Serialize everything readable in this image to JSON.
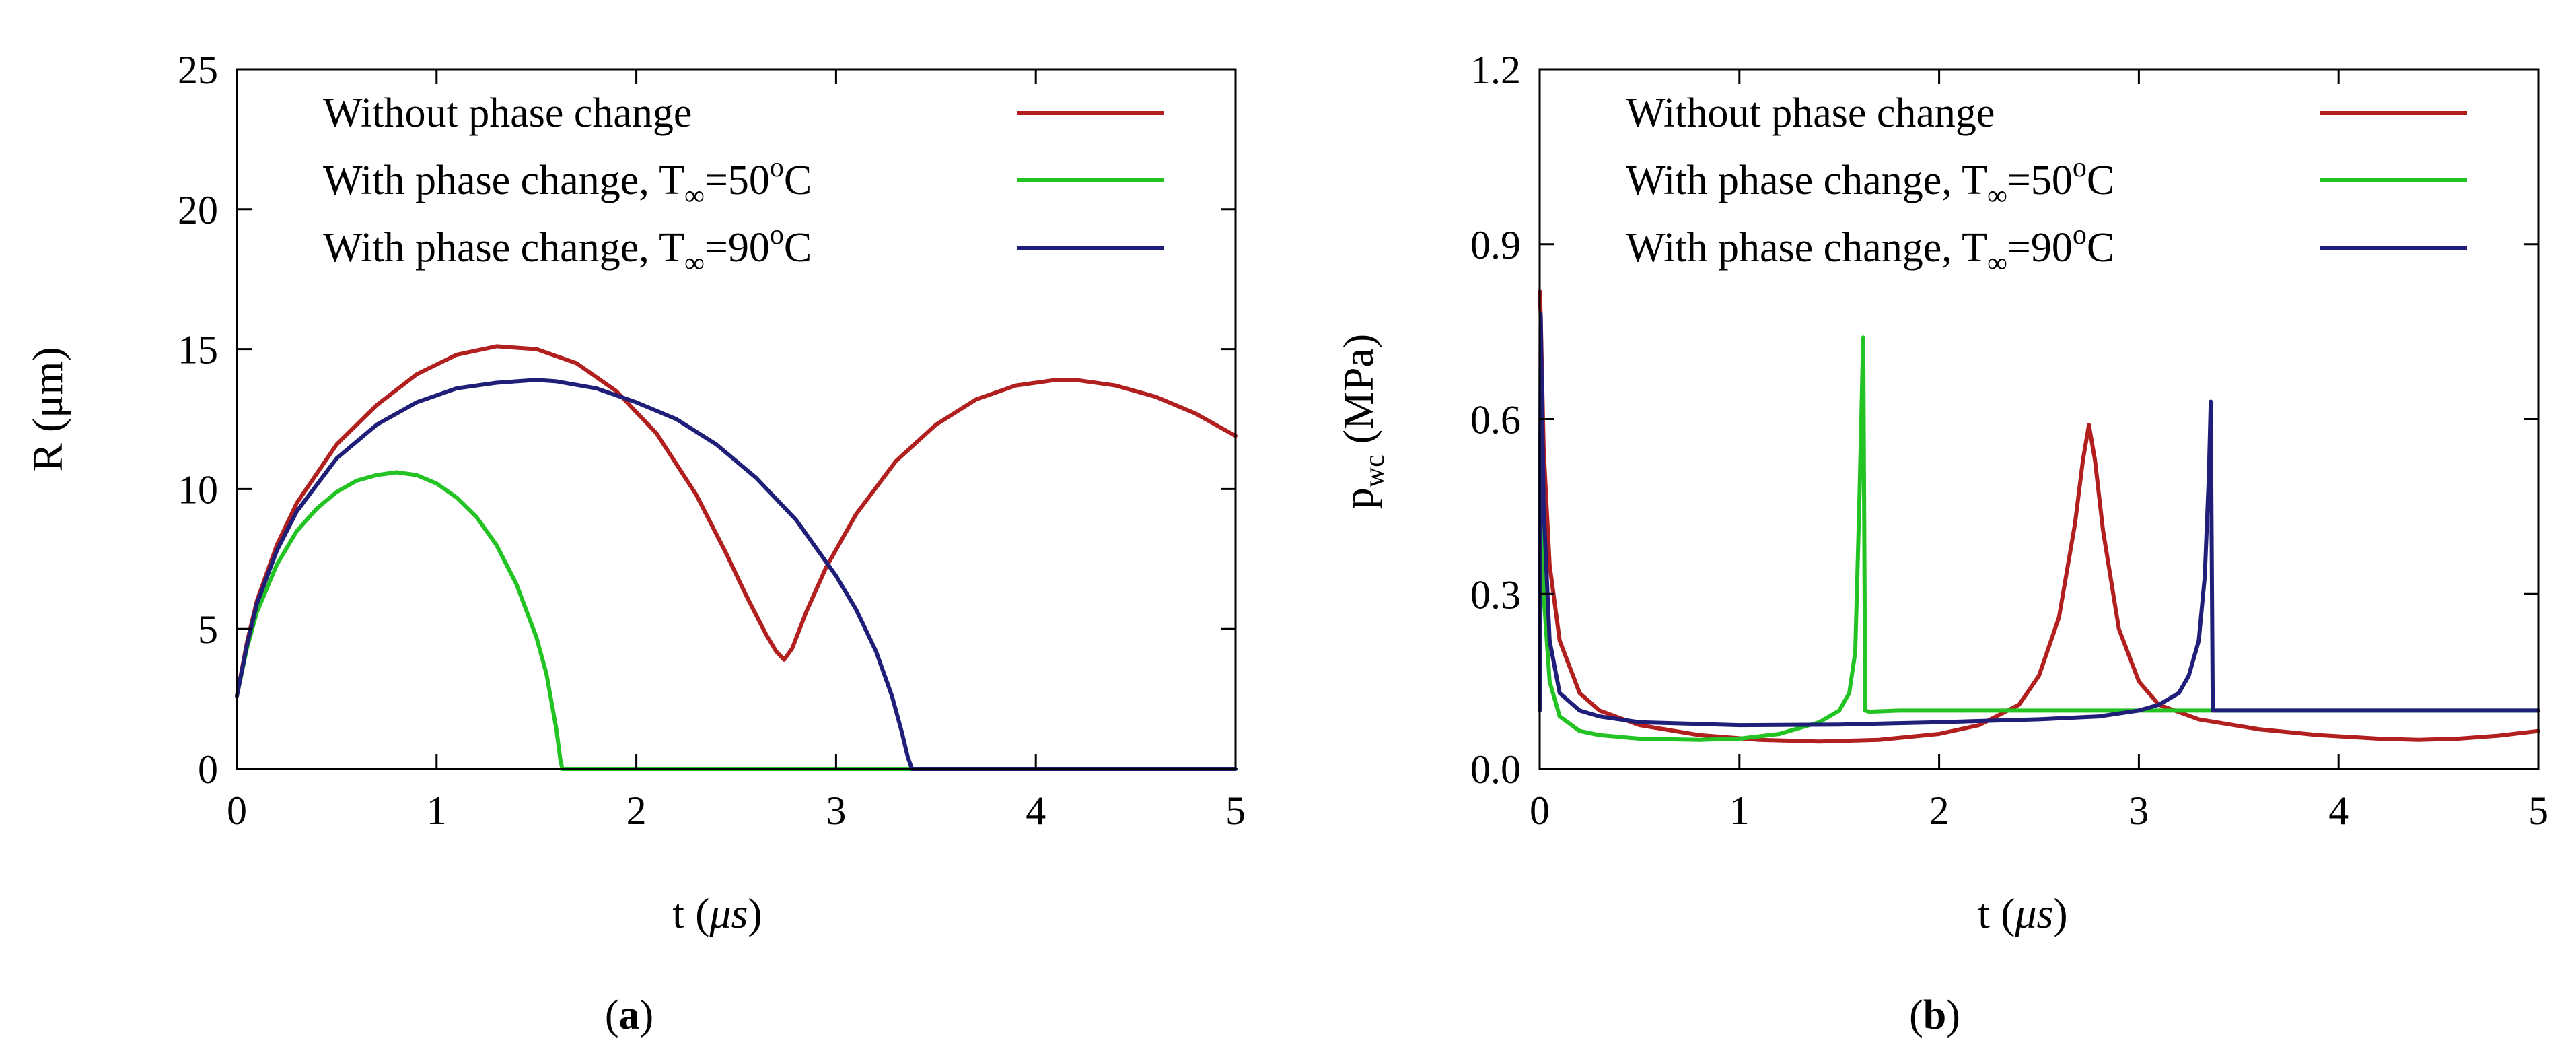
{
  "chart_data": [
    {
      "type": "line",
      "panel": "a",
      "panel_label": "a",
      "xlabel_prefix": "t (",
      "xlabel_unit": "μs",
      "xlabel_suffix": ")",
      "ylabel": "R (μm)",
      "xlim": [
        0,
        5
      ],
      "ylim": [
        0,
        25
      ],
      "xticks": [
        0,
        1,
        2,
        3,
        4,
        5
      ],
      "yticks": [
        0,
        5,
        10,
        15,
        20,
        25
      ],
      "xtick_labels": [
        "0",
        "1",
        "2",
        "3",
        "4",
        "5"
      ],
      "ytick_labels": [
        "0",
        "5",
        "10",
        "15",
        "20",
        "25"
      ],
      "legend": [
        {
          "prefix": "Without phase change",
          "sub": "",
          "mid": "",
          "sup": "",
          "suffix": "",
          "color": "#b11f1f"
        },
        {
          "prefix": "With phase change, T",
          "sub": "∞",
          "mid": "=50",
          "sup": "o",
          "suffix": "C",
          "color": "#22c322"
        },
        {
          "prefix": "With phase change, T",
          "sub": "∞",
          "mid": "=90",
          "sup": "o",
          "suffix": "C",
          "color": "#1f1f7a"
        }
      ],
      "series": [
        {
          "name": "Without phase change",
          "color": "#b11f1f",
          "x": [
            0,
            0.05,
            0.1,
            0.2,
            0.3,
            0.5,
            0.7,
            0.9,
            1.1,
            1.3,
            1.5,
            1.7,
            1.9,
            2.1,
            2.3,
            2.45,
            2.55,
            2.65,
            2.7,
            2.74,
            2.78,
            2.85,
            2.95,
            3.1,
            3.3,
            3.5,
            3.7,
            3.9,
            4.1,
            4.2,
            4.4,
            4.6,
            4.8,
            5.0
          ],
          "y": [
            2.6,
            4.5,
            6.0,
            8.0,
            9.5,
            11.6,
            13.0,
            14.1,
            14.8,
            15.1,
            15.0,
            14.5,
            13.5,
            12.0,
            9.8,
            7.7,
            6.2,
            4.8,
            4.2,
            3.9,
            4.3,
            5.6,
            7.2,
            9.1,
            11.0,
            12.3,
            13.2,
            13.7,
            13.9,
            13.9,
            13.7,
            13.3,
            12.7,
            11.9
          ]
        },
        {
          "name": "With phase change, T∞=50oC",
          "color": "#22c322",
          "x": [
            0,
            0.05,
            0.1,
            0.2,
            0.3,
            0.4,
            0.5,
            0.6,
            0.7,
            0.8,
            0.9,
            1.0,
            1.1,
            1.2,
            1.3,
            1.4,
            1.5,
            1.55,
            1.6,
            1.62,
            1.63,
            2.0,
            3.0,
            4.0,
            5.0
          ],
          "y": [
            2.6,
            4.3,
            5.6,
            7.3,
            8.5,
            9.3,
            9.9,
            10.3,
            10.5,
            10.6,
            10.5,
            10.2,
            9.7,
            9.0,
            8.0,
            6.6,
            4.7,
            3.4,
            1.4,
            0.3,
            0,
            0,
            0,
            0,
            0
          ]
        },
        {
          "name": "With phase change, T∞=90oC",
          "color": "#1f1f7a",
          "x": [
            0,
            0.05,
            0.1,
            0.2,
            0.3,
            0.5,
            0.7,
            0.9,
            1.1,
            1.3,
            1.5,
            1.6,
            1.8,
            2.0,
            2.2,
            2.4,
            2.6,
            2.8,
            3.0,
            3.1,
            3.2,
            3.28,
            3.33,
            3.36,
            3.38,
            4.0,
            5.0
          ],
          "y": [
            2.6,
            4.4,
            5.9,
            7.8,
            9.2,
            11.1,
            12.3,
            13.1,
            13.6,
            13.8,
            13.9,
            13.85,
            13.6,
            13.1,
            12.5,
            11.6,
            10.4,
            8.9,
            6.9,
            5.7,
            4.2,
            2.6,
            1.3,
            0.4,
            0,
            0,
            0
          ]
        }
      ]
    },
    {
      "type": "line",
      "panel": "b",
      "panel_label": "b",
      "xlabel_prefix": "t (",
      "xlabel_unit": "μs",
      "xlabel_suffix": ")",
      "ylabel_base": "p",
      "ylabel_sub": "wc",
      "ylabel_rest": " (MPa)",
      "xlim": [
        0,
        5
      ],
      "ylim": [
        0,
        1.2
      ],
      "xticks": [
        0,
        1,
        2,
        3,
        4,
        5
      ],
      "yticks": [
        0,
        0.3,
        0.6,
        0.9,
        1.2
      ],
      "xtick_labels": [
        "0",
        "1",
        "2",
        "3",
        "4",
        "5"
      ],
      "ytick_labels": [
        "0.0",
        "0.3",
        "0.6",
        "0.9",
        "1.2"
      ],
      "legend": [
        {
          "prefix": "Without phase change",
          "sub": "",
          "mid": "",
          "sup": "",
          "suffix": "",
          "color": "#b11f1f"
        },
        {
          "prefix": "With phase change, T",
          "sub": "∞",
          "mid": "=50",
          "sup": "o",
          "suffix": "C",
          "color": "#22c322"
        },
        {
          "prefix": "With phase change, T",
          "sub": "∞",
          "mid": "=90",
          "sup": "o",
          "suffix": "C",
          "color": "#1f1f7a"
        }
      ],
      "series": [
        {
          "name": "Without phase change",
          "color": "#b11f1f",
          "x": [
            0,
            0.005,
            0.02,
            0.05,
            0.1,
            0.2,
            0.3,
            0.5,
            0.8,
            1.1,
            1.4,
            1.7,
            2.0,
            2.2,
            2.4,
            2.5,
            2.6,
            2.68,
            2.72,
            2.75,
            2.78,
            2.82,
            2.9,
            3.0,
            3.1,
            3.3,
            3.6,
            3.9,
            4.2,
            4.4,
            4.6,
            4.8,
            5.0
          ],
          "y": [
            0.82,
            0.78,
            0.55,
            0.35,
            0.22,
            0.13,
            0.1,
            0.075,
            0.058,
            0.05,
            0.047,
            0.05,
            0.06,
            0.075,
            0.11,
            0.16,
            0.26,
            0.42,
            0.53,
            0.59,
            0.53,
            0.41,
            0.24,
            0.15,
            0.11,
            0.085,
            0.068,
            0.058,
            0.052,
            0.05,
            0.052,
            0.057,
            0.065
          ]
        },
        {
          "name": "With phase change, T∞=50oC",
          "color": "#22c322",
          "x": [
            0,
            0.005,
            0.02,
            0.05,
            0.1,
            0.2,
            0.3,
            0.5,
            0.8,
            1.0,
            1.2,
            1.4,
            1.5,
            1.55,
            1.58,
            1.6,
            1.62,
            1.63,
            1.65,
            1.8,
            2.0,
            2.5,
            3.0,
            3.5,
            4.0,
            4.5,
            5.0
          ],
          "y": [
            0.1,
            0.5,
            0.3,
            0.15,
            0.09,
            0.065,
            0.058,
            0.052,
            0.05,
            0.052,
            0.06,
            0.08,
            0.1,
            0.13,
            0.2,
            0.45,
            0.74,
            0.1,
            0.098,
            0.1,
            0.1,
            0.1,
            0.1,
            0.1,
            0.1,
            0.1,
            0.1
          ]
        },
        {
          "name": "With phase change, T∞=90oC",
          "color": "#1f1f7a",
          "x": [
            0,
            0.005,
            0.02,
            0.05,
            0.1,
            0.2,
            0.3,
            0.5,
            1.0,
            1.5,
            2.0,
            2.5,
            2.8,
            3.0,
            3.1,
            3.2,
            3.25,
            3.3,
            3.33,
            3.35,
            3.36,
            3.37,
            3.4,
            3.6,
            4.0,
            4.5,
            5.0
          ],
          "y": [
            0.1,
            0.78,
            0.45,
            0.22,
            0.13,
            0.1,
            0.09,
            0.08,
            0.075,
            0.076,
            0.08,
            0.085,
            0.09,
            0.1,
            0.11,
            0.13,
            0.16,
            0.22,
            0.33,
            0.5,
            0.63,
            0.1,
            0.1,
            0.1,
            0.1,
            0.1,
            0.1
          ]
        }
      ]
    }
  ]
}
